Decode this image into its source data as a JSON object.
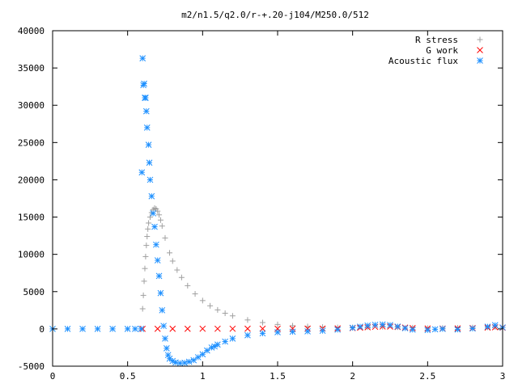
{
  "chart_data": {
    "type": "scatter",
    "title": "m2/n1.5/q2.0/r-+.20-j104/M250.0/512",
    "xlabel": "",
    "ylabel": "",
    "xlim": [
      0,
      3
    ],
    "ylim": [
      -5000,
      40000
    ],
    "x_ticks": [
      "0",
      "0.5",
      "1",
      "1.5",
      "2",
      "2.5",
      "3"
    ],
    "y_ticks": [
      "-5000",
      "0",
      "5000",
      "10000",
      "15000",
      "20000",
      "25000",
      "30000",
      "35000",
      "40000"
    ],
    "legend_position": "top-right",
    "grid": false,
    "series": [
      {
        "name": "R stress",
        "marker": "plus",
        "color": "#a0a0a0",
        "points": [
          [
            0.6,
            2700
          ],
          [
            0.605,
            4500
          ],
          [
            0.61,
            6400
          ],
          [
            0.615,
            8100
          ],
          [
            0.62,
            9700
          ],
          [
            0.625,
            11200
          ],
          [
            0.63,
            12400
          ],
          [
            0.635,
            13400
          ],
          [
            0.64,
            14200
          ],
          [
            0.65,
            15000
          ],
          [
            0.66,
            15600
          ],
          [
            0.67,
            16000
          ],
          [
            0.68,
            16200
          ],
          [
            0.69,
            16100
          ],
          [
            0.7,
            15800
          ],
          [
            0.71,
            15300
          ],
          [
            0.72,
            14600
          ],
          [
            0.73,
            13800
          ],
          [
            0.75,
            12200
          ],
          [
            0.78,
            10200
          ],
          [
            0.8,
            9100
          ],
          [
            0.83,
            7900
          ],
          [
            0.86,
            6900
          ],
          [
            0.9,
            5800
          ],
          [
            0.95,
            4700
          ],
          [
            1.0,
            3800
          ],
          [
            1.05,
            3100
          ],
          [
            1.1,
            2550
          ],
          [
            1.15,
            2100
          ],
          [
            1.2,
            1750
          ],
          [
            1.3,
            1200
          ],
          [
            1.4,
            850
          ],
          [
            1.5,
            600
          ],
          [
            1.6,
            430
          ],
          [
            1.7,
            320
          ],
          [
            1.8,
            240
          ],
          [
            1.9,
            190
          ],
          [
            2.0,
            200
          ],
          [
            2.1,
            250
          ],
          [
            2.2,
            280
          ],
          [
            2.3,
            240
          ],
          [
            2.4,
            160
          ],
          [
            2.5,
            100
          ],
          [
            2.6,
            110
          ],
          [
            2.7,
            150
          ],
          [
            2.8,
            180
          ],
          [
            2.9,
            220
          ],
          [
            2.95,
            250
          ],
          [
            3.0,
            200
          ]
        ]
      },
      {
        "name": "G work",
        "marker": "cross",
        "color": "#ff0000",
        "points": [
          [
            0.6,
            10
          ],
          [
            0.7,
            15
          ],
          [
            0.8,
            15
          ],
          [
            0.9,
            15
          ],
          [
            1.0,
            20
          ],
          [
            1.1,
            20
          ],
          [
            1.2,
            20
          ],
          [
            1.3,
            25
          ],
          [
            1.4,
            25
          ],
          [
            1.5,
            30
          ],
          [
            1.6,
            35
          ],
          [
            1.7,
            40
          ],
          [
            1.8,
            50
          ],
          [
            1.9,
            70
          ],
          [
            2.0,
            110
          ],
          [
            2.05,
            160
          ],
          [
            2.1,
            220
          ],
          [
            2.15,
            280
          ],
          [
            2.2,
            320
          ],
          [
            2.25,
            310
          ],
          [
            2.3,
            260
          ],
          [
            2.35,
            180
          ],
          [
            2.4,
            110
          ],
          [
            2.5,
            60
          ],
          [
            2.6,
            50
          ],
          [
            2.7,
            70
          ],
          [
            2.8,
            110
          ],
          [
            2.9,
            180
          ],
          [
            2.95,
            220
          ],
          [
            3.0,
            160
          ]
        ]
      },
      {
        "name": "Acoustic flux",
        "marker": "star",
        "color": "#1e90ff",
        "points": [
          [
            0.0,
            0
          ],
          [
            0.1,
            0
          ],
          [
            0.2,
            0
          ],
          [
            0.3,
            0
          ],
          [
            0.4,
            0
          ],
          [
            0.5,
            0
          ],
          [
            0.55,
            0
          ],
          [
            0.59,
            0
          ],
          [
            0.595,
            21000
          ],
          [
            0.6,
            36300
          ],
          [
            0.605,
            32700
          ],
          [
            0.61,
            32900
          ],
          [
            0.615,
            31000
          ],
          [
            0.62,
            31000
          ],
          [
            0.625,
            29200
          ],
          [
            0.63,
            27000
          ],
          [
            0.64,
            24700
          ],
          [
            0.645,
            22300
          ],
          [
            0.65,
            20000
          ],
          [
            0.66,
            17800
          ],
          [
            0.67,
            15500
          ],
          [
            0.68,
            13700
          ],
          [
            0.69,
            11300
          ],
          [
            0.7,
            9200
          ],
          [
            0.71,
            7100
          ],
          [
            0.72,
            4800
          ],
          [
            0.73,
            2500
          ],
          [
            0.74,
            400
          ],
          [
            0.75,
            -1300
          ],
          [
            0.76,
            -2600
          ],
          [
            0.77,
            -3500
          ],
          [
            0.78,
            -4000
          ],
          [
            0.8,
            -4300
          ],
          [
            0.82,
            -4500
          ],
          [
            0.85,
            -4600
          ],
          [
            0.88,
            -4550
          ],
          [
            0.91,
            -4400
          ],
          [
            0.94,
            -4200
          ],
          [
            0.97,
            -3800
          ],
          [
            1.0,
            -3400
          ],
          [
            1.03,
            -2900
          ],
          [
            1.06,
            -2500
          ],
          [
            1.08,
            -2350
          ],
          [
            1.1,
            -2100
          ],
          [
            1.15,
            -1700
          ],
          [
            1.2,
            -1300
          ],
          [
            1.3,
            -850
          ],
          [
            1.4,
            -600
          ],
          [
            1.5,
            -450
          ],
          [
            1.6,
            -380
          ],
          [
            1.7,
            -330
          ],
          [
            1.8,
            -250
          ],
          [
            1.9,
            -100
          ],
          [
            2.0,
            150
          ],
          [
            2.05,
            300
          ],
          [
            2.1,
            450
          ],
          [
            2.15,
            550
          ],
          [
            2.2,
            600
          ],
          [
            2.25,
            520
          ],
          [
            2.3,
            320
          ],
          [
            2.35,
            100
          ],
          [
            2.4,
            -100
          ],
          [
            2.5,
            -150
          ],
          [
            2.55,
            -50
          ],
          [
            2.6,
            0
          ],
          [
            2.7,
            -80
          ],
          [
            2.8,
            50
          ],
          [
            2.9,
            300
          ],
          [
            2.95,
            500
          ],
          [
            3.0,
            200
          ]
        ]
      }
    ]
  }
}
